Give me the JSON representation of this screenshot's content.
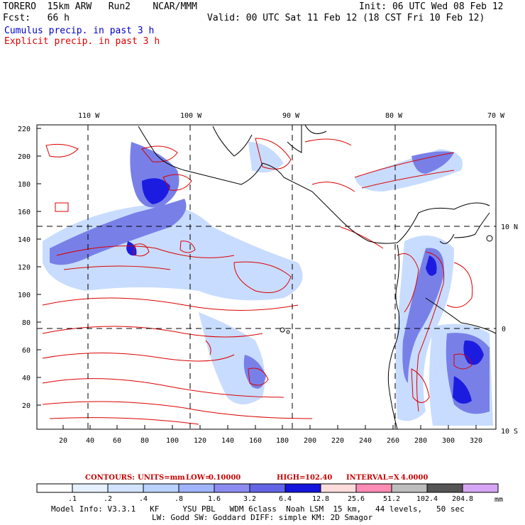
{
  "header": {
    "model_name": "TORERO  15km ARW   Run2    NCAR/MMM",
    "forecast": "Fcst:   66 h",
    "init": "Init: 06 UTC Wed 08 Feb 12",
    "valid": "Valid: 00 UTC Sat 11 Feb 12 (18 CST Fri 10 Feb 12)",
    "field_cumulus": "Cumulus precip. in past 3 h",
    "field_explicit": "Explicit precip. in past 3 h"
  },
  "map": {
    "lon_labels": [
      "110 W",
      "100 W",
      "90 W",
      "80 W",
      "70 W"
    ],
    "lat_labels": [
      "10 N",
      "0",
      "10 S"
    ],
    "y_ticks": [
      "220",
      "200",
      "180",
      "160",
      "140",
      "120",
      "100",
      "80",
      "60",
      "40",
      "20"
    ],
    "x_ticks": [
      "20",
      "40",
      "60",
      "80",
      "100",
      "120",
      "140",
      "160",
      "180",
      "200",
      "220",
      "240",
      "260",
      "280",
      "300",
      "320"
    ],
    "colors": {
      "contour": "#dc0000",
      "coast": "#000000",
      "precip_light": "#c8dcff",
      "precip_mid": "#7880e8",
      "precip_heavy": "#1c1ce0"
    }
  },
  "contours": {
    "label_contours": "CONTOURS:",
    "label_units": "UNITS=mm",
    "label_low": "LOW=",
    "low": "0.10000",
    "label_high": "HIGH=",
    "high": "102.40",
    "label_interval": "INTERVAL=X",
    "interval": "4.0000"
  },
  "colorbar": {
    "labels": [
      ".1",
      ".2",
      ".4",
      ".8",
      "1.6",
      "3.2",
      "6.4",
      "12.8",
      "25.6",
      "51.2",
      "102.4",
      "204.8"
    ],
    "colors": [
      "#ffffff",
      "#e6f0ff",
      "#d2e3ff",
      "#b9d2ff",
      "#a0b4ff",
      "#8c8cf0",
      "#6464e6",
      "#1414dc",
      "#ffdcdc",
      "#ff8cb4",
      "#bebebe",
      "#555555",
      "#d7a5f5"
    ],
    "unit": "mm"
  },
  "model_info": {
    "line1": "Model Info: V3.3.1   KF     YSU PBL   WDM 6class  Noah LSM  15 km,   44 levels,   50 sec",
    "line2": "LW: Godd SW: Goddard DIFF: simple KM: 2D Smagor"
  }
}
